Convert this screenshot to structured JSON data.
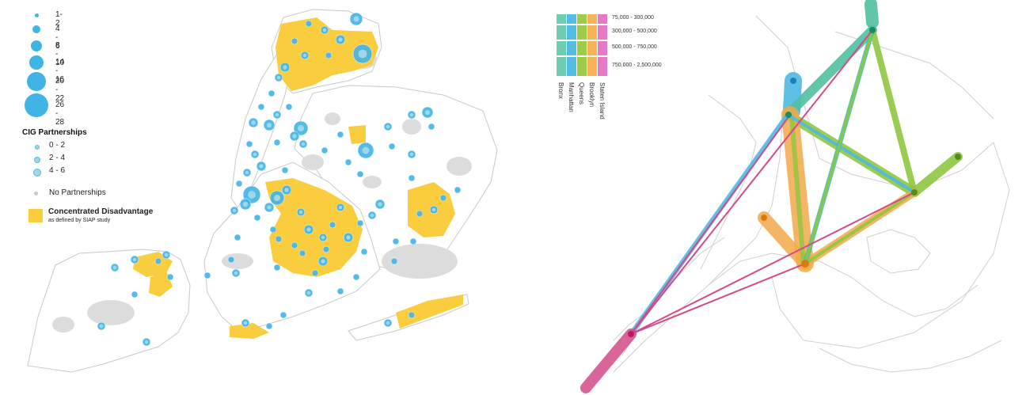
{
  "left_map": {
    "size_legend": {
      "items": [
        {
          "label": "1-2",
          "diameter": 5
        },
        {
          "label": "4 - 6",
          "diameter": 10
        },
        {
          "label": "8 - 10",
          "diameter": 14
        },
        {
          "label": "14 - 16",
          "diameter": 18
        },
        {
          "label": "20 - 22",
          "diameter": 24
        },
        {
          "label": "26 - 28",
          "diameter": 30
        }
      ]
    },
    "cig_legend": {
      "title": "CIG Partnerships",
      "items": [
        {
          "label": "0 - 2",
          "diameter": 4
        },
        {
          "label": "2 - 4",
          "diameter": 6
        },
        {
          "label": "4 - 6",
          "diameter": 8
        }
      ]
    },
    "no_partnerships_label": "No Partnerships",
    "concentrated_disadvantage": {
      "title": "Concentrated Disadvantage",
      "subtitle": "as defined by SIAP study"
    },
    "colors": {
      "circle": "#3fb4e5",
      "cig": "#9ed6ea",
      "disadvantage": "#f9cd3d",
      "land": "#ffffff",
      "boundary": "#c9c9c9",
      "parks": "#dcdcdc"
    }
  },
  "right_map": {
    "flow_legend": {
      "ranges": [
        "75,000 - 300,000",
        "300,000 - 500,000",
        "500,000 - 750,000",
        "750,000 - 2,500,000"
      ],
      "boroughs": [
        "Bronx",
        "Manhattan",
        "Queens",
        "Brooklyn",
        "Staten Island"
      ],
      "colors": [
        "#6fcdb0",
        "#55bde3",
        "#9ccd4a",
        "#f6b35a",
        "#e579c6"
      ]
    },
    "flow_colors": {
      "bronx": "#4fbfa0",
      "manhattan": "#4fb8e2",
      "queens": "#8ec63f",
      "brooklyn": "#f2a94a",
      "staten_island": "#d44a8a",
      "dark_dot": "#1a8a6a"
    }
  }
}
